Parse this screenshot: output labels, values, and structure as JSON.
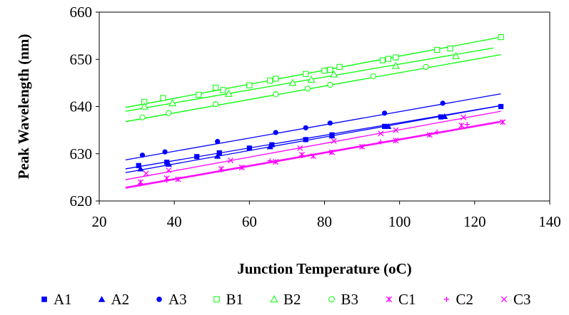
{
  "chart_data": {
    "type": "scatter",
    "title": "",
    "xlabel": "Junction Temperature (oC)",
    "ylabel": "Peak Wavelength (nm)",
    "xlim": [
      20,
      140
    ],
    "ylim": [
      620,
      660
    ],
    "xticks": [
      20,
      40,
      60,
      80,
      100,
      120,
      140
    ],
    "yticks": [
      620,
      630,
      640,
      650,
      660
    ],
    "grid": "none",
    "legend_position": "bottom",
    "series": [
      {
        "name": "A1",
        "color": "#0000ff",
        "marker": "square-filled",
        "points": [
          [
            30.5,
            627.5
          ],
          [
            38,
            628.2
          ],
          [
            46,
            629.4
          ],
          [
            52,
            630.2
          ],
          [
            60,
            631.2
          ],
          [
            66,
            631.9
          ],
          [
            75,
            633.0
          ],
          [
            82,
            634.0
          ],
          [
            96,
            635.8
          ],
          [
            111,
            637.8
          ],
          [
            127,
            640.0
          ]
        ],
        "fit": [
          [
            27,
            626.8
          ],
          [
            127,
            640.2
          ]
        ]
      },
      {
        "name": "A2",
        "color": "#0000ff",
        "marker": "triangle-filled",
        "points": [
          [
            31,
            626.8
          ],
          [
            38.5,
            627.8
          ],
          [
            51.5,
            629.5
          ],
          [
            65.5,
            631.5
          ],
          [
            82,
            633.8
          ],
          [
            97,
            635.8
          ],
          [
            112,
            637.9
          ]
        ],
        "fit": [
          [
            27,
            626.0
          ],
          [
            127,
            640.2
          ]
        ]
      },
      {
        "name": "A3",
        "color": "#0000ff",
        "marker": "circle-filled",
        "points": [
          [
            31.5,
            629.7
          ],
          [
            37.5,
            630.4
          ],
          [
            51.5,
            632.6
          ],
          [
            67,
            634.5
          ],
          [
            75,
            635.5
          ],
          [
            81.5,
            636.5
          ],
          [
            96,
            638.6
          ],
          [
            111.5,
            640.7
          ]
        ],
        "fit": [
          [
            27,
            628.7
          ],
          [
            127,
            642.7
          ]
        ]
      },
      {
        "name": "B1",
        "color": "#00ff00",
        "marker": "square-open",
        "points": [
          [
            32,
            641.0
          ],
          [
            37,
            641.8
          ],
          [
            46.5,
            642.5
          ],
          [
            51,
            644.0
          ],
          [
            53,
            643.5
          ],
          [
            60,
            644.5
          ],
          [
            65.5,
            645.5
          ],
          [
            67,
            645.9
          ],
          [
            75,
            646.9
          ],
          [
            80,
            647.6
          ],
          [
            81.5,
            647.8
          ],
          [
            84,
            648.4
          ],
          [
            95.5,
            649.8
          ],
          [
            97,
            650.1
          ],
          [
            99,
            650.4
          ],
          [
            110,
            652.0
          ],
          [
            113.5,
            652.3
          ],
          [
            127,
            654.7
          ]
        ],
        "fit": [
          [
            27,
            639.8
          ],
          [
            127,
            654.7
          ]
        ]
      },
      {
        "name": "B2",
        "color": "#00ff00",
        "marker": "triangle-open",
        "points": [
          [
            32,
            640.0
          ],
          [
            39.5,
            640.7
          ],
          [
            54.5,
            642.7
          ],
          [
            71.5,
            645.0
          ],
          [
            76.5,
            645.7
          ],
          [
            82.5,
            646.8
          ],
          [
            99,
            648.6
          ],
          [
            115,
            650.7
          ]
        ],
        "fit": [
          [
            27,
            639.0
          ],
          [
            125,
            652.4
          ]
        ]
      },
      {
        "name": "B3",
        "color": "#00ff00",
        "marker": "circle-open",
        "points": [
          [
            31.5,
            637.7
          ],
          [
            38.5,
            638.6
          ],
          [
            51,
            640.5
          ],
          [
            67,
            642.6
          ],
          [
            75.5,
            643.8
          ],
          [
            81.5,
            644.6
          ],
          [
            93,
            646.4
          ],
          [
            107,
            648.4
          ]
        ],
        "fit": [
          [
            27,
            636.8
          ],
          [
            127,
            651.0
          ]
        ]
      },
      {
        "name": "C1",
        "color": "#ff00ff",
        "marker": "star",
        "points": [
          [
            31,
            624.0
          ],
          [
            38,
            624.8
          ],
          [
            41,
            624.6
          ],
          [
            52.5,
            626.8
          ],
          [
            58,
            627.1
          ],
          [
            67,
            628.3
          ],
          [
            74,
            629.8
          ],
          [
            77,
            629.5
          ],
          [
            82,
            630.3
          ],
          [
            90,
            631.5
          ],
          [
            99,
            632.8
          ],
          [
            108,
            634.0
          ],
          [
            116.5,
            636.0
          ],
          [
            127.5,
            636.7
          ]
        ],
        "fit": [
          [
            27,
            622.9
          ],
          [
            127,
            636.9
          ]
        ]
      },
      {
        "name": "C2",
        "color": "#ff00ff",
        "marker": "plus",
        "points": [
          [
            31,
            623.6
          ],
          [
            38,
            624.4
          ],
          [
            52.5,
            626.6
          ],
          [
            65.5,
            628.5
          ],
          [
            74,
            629.6
          ],
          [
            81.5,
            630.3
          ],
          [
            95,
            632.5
          ],
          [
            110,
            634.6
          ],
          [
            118,
            636.2
          ]
        ],
        "fit": [
          [
            27,
            622.7
          ],
          [
            127,
            636.7
          ]
        ]
      },
      {
        "name": "C3",
        "color": "#ff00ff",
        "marker": "x",
        "points": [
          [
            32.5,
            625.8
          ],
          [
            38.5,
            626.5
          ],
          [
            55,
            628.6
          ],
          [
            73.5,
            631.2
          ],
          [
            82.5,
            632.7
          ],
          [
            95,
            634.3
          ],
          [
            99,
            635.0
          ],
          [
            117,
            637.7
          ]
        ],
        "fit": [
          [
            27,
            624.5
          ],
          [
            127,
            639.0
          ]
        ]
      }
    ]
  }
}
